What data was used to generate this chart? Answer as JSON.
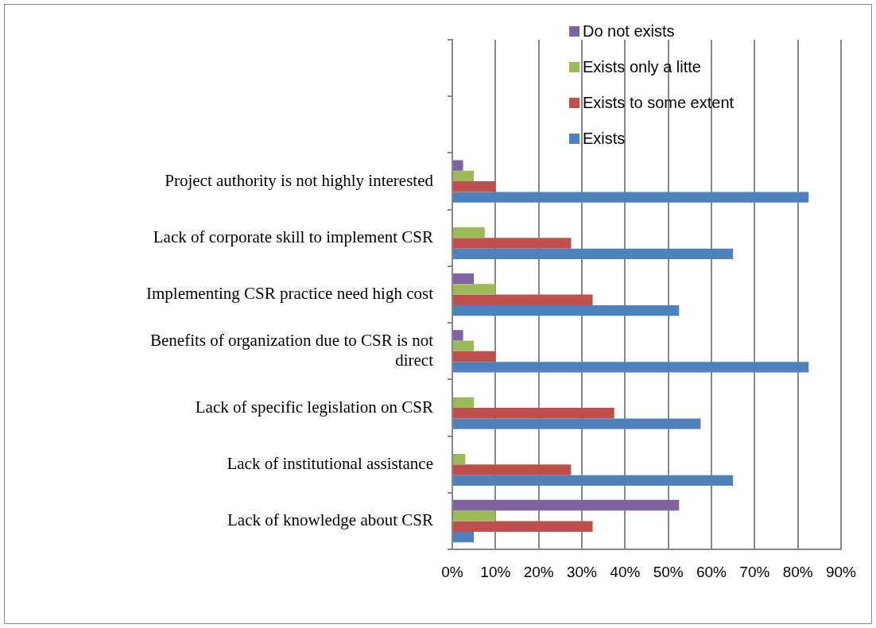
{
  "chart_data": {
    "type": "bar",
    "orientation": "horizontal",
    "categories": [
      null,
      null,
      "Project authority is not highly interested",
      "Lack of corporate skill to implement CSR",
      "Implementing CSR practice need high cost",
      "Benefits of organization due to CSR is not direct",
      "Lack of specific legislation on CSR",
      "Lack of institutional assistance",
      "Lack of knowledge about CSR"
    ],
    "series": [
      {
        "name": "Do not exists",
        "color": "#8064a2",
        "values": [
          null,
          null,
          2.5,
          0,
          5,
          2.5,
          0,
          0,
          52.5
        ]
      },
      {
        "name": "Exists only a litte",
        "color": "#9bbb59",
        "values": [
          null,
          null,
          5,
          7.5,
          10,
          5,
          5,
          3,
          10
        ]
      },
      {
        "name": "Exists to some extent",
        "color": "#c0504d",
        "values": [
          null,
          null,
          10,
          27.5,
          32.5,
          10,
          37.5,
          27.5,
          32.5
        ]
      },
      {
        "name": "Exists",
        "color": "#4f81bd",
        "values": [
          null,
          null,
          82.5,
          65,
          52.5,
          82.5,
          57.5,
          65,
          5
        ]
      }
    ],
    "xlim": [
      0,
      90
    ],
    "xticks": [
      {
        "value": 0,
        "label": "0%"
      },
      {
        "value": 10,
        "label": "10%"
      },
      {
        "value": 20,
        "label": "20%"
      },
      {
        "value": 30,
        "label": "30%"
      },
      {
        "value": 40,
        "label": "40%"
      },
      {
        "value": 50,
        "label": "50%"
      },
      {
        "value": 60,
        "label": "60%"
      },
      {
        "value": 70,
        "label": "70%"
      },
      {
        "value": 80,
        "label": "80%"
      },
      {
        "value": 90,
        "label": "90%"
      }
    ],
    "grid": "x",
    "legend": "top"
  }
}
